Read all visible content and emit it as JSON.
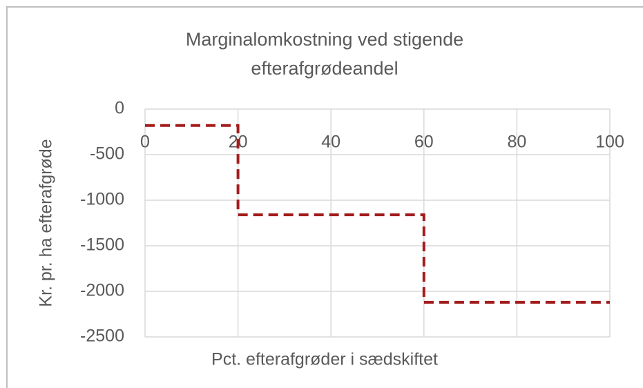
{
  "chart_data": {
    "type": "line",
    "title": "Marginalomkostning ved stigende efterafgrødeandel",
    "x_label": "Pct. efterafgrøder i sædskiftet",
    "y_label": "Kr. pr. ha efterafgrøde",
    "x": [
      0,
      20,
      20,
      60,
      60,
      100
    ],
    "series": [
      {
        "name": "Marginalomkostning",
        "color": "#a31d1d",
        "values": [
          -180,
          -180,
          -1160,
          -1160,
          -2120,
          -2120
        ]
      }
    ],
    "xlim": [
      0,
      100
    ],
    "xticks": [
      0,
      20,
      40,
      60,
      80,
      100
    ],
    "ylim": [
      -2500,
      0
    ],
    "yticks": [
      0,
      -500,
      -1000,
      -1500,
      -2000,
      -2500
    ],
    "grid": true
  }
}
